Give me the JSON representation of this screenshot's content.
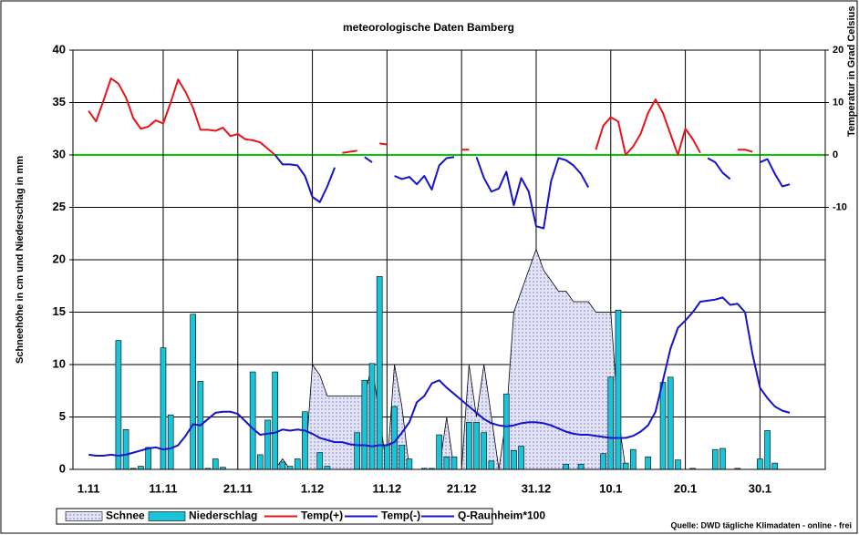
{
  "chart_data": {
    "type": "combo",
    "title": "meteorologische Daten  Bamberg",
    "y_label": "Schneehöhe in cm und Niederschlag in mm",
    "y2_label": "Temperatur in Grad Celsius",
    "source": "Quelle: DWD tägliche Klimadaten - online - frei",
    "categories": [
      "1.11",
      null,
      null,
      null,
      null,
      null,
      null,
      null,
      null,
      null,
      "11.11",
      null,
      null,
      null,
      null,
      null,
      null,
      null,
      null,
      null,
      "21.11",
      null,
      null,
      null,
      null,
      null,
      null,
      null,
      null,
      null,
      "1.12",
      null,
      null,
      null,
      null,
      null,
      null,
      null,
      null,
      null,
      "11.12",
      null,
      null,
      null,
      null,
      null,
      null,
      null,
      null,
      null,
      "21.12",
      null,
      null,
      null,
      null,
      null,
      null,
      null,
      null,
      null,
      "31.12",
      null,
      null,
      null,
      null,
      null,
      null,
      null,
      null,
      null,
      "10.1",
      null,
      null,
      null,
      null,
      null,
      null,
      null,
      null,
      null,
      "20.1",
      null,
      null,
      null,
      null,
      null,
      null,
      null,
      null,
      null,
      "30.1",
      null,
      null,
      null,
      null
    ],
    "ylim": [
      0,
      40
    ],
    "yticks": [
      0,
      5,
      10,
      15,
      20,
      25,
      30,
      35,
      40
    ],
    "y2lim": [
      -60,
      20
    ],
    "y2ticks": [
      -10,
      0,
      10,
      20
    ],
    "grid": true,
    "zero_line_color": "#00cc00",
    "legend": "bottom",
    "series": [
      {
        "name": "Schnee",
        "type": "area",
        "color": "#d8d8f4",
        "values": [
          0,
          0,
          0,
          0,
          0,
          0,
          0,
          0,
          0,
          0,
          0,
          0,
          0,
          0,
          0,
          0,
          0,
          0,
          0,
          0,
          0,
          0,
          0,
          0,
          0,
          0,
          1,
          0,
          0,
          0,
          10,
          9,
          7,
          7,
          7,
          7,
          7,
          7,
          10,
          5,
          0,
          10,
          6,
          0,
          0,
          0,
          0,
          0,
          5,
          0,
          0,
          10,
          5,
          10,
          5,
          0,
          5,
          15,
          17,
          19,
          21,
          19,
          18,
          17,
          17,
          16,
          16,
          16,
          15,
          15,
          15,
          5,
          0,
          0,
          0,
          0,
          0,
          0,
          0,
          0,
          0,
          0,
          0,
          0,
          0,
          0,
          0,
          0,
          0,
          0,
          0,
          0,
          0,
          0,
          0
        ]
      },
      {
        "name": "Niederschlag",
        "type": "bar",
        "color": "#19c3d8",
        "values": [
          0,
          0,
          0,
          0,
          12.3,
          3.8,
          0.1,
          0.3,
          2.1,
          0,
          11.6,
          5.2,
          0,
          0,
          14.8,
          8.4,
          0.1,
          1,
          0.2,
          0,
          0,
          0,
          9.3,
          1.4,
          4.7,
          9.3,
          0.7,
          0.3,
          1,
          5.5,
          0,
          1.6,
          0.3,
          0,
          0,
          0,
          3.5,
          8.5,
          10.1,
          18.4,
          2.3,
          6,
          2.3,
          1,
          0,
          0.1,
          0.1,
          3.3,
          1.2,
          1.2,
          0,
          4.5,
          4.5,
          3.5,
          0.8,
          0,
          7.2,
          1.8,
          2.2,
          0,
          0,
          0,
          0,
          0,
          0.5,
          0,
          0.5,
          0,
          0,
          1.5,
          8.8,
          15.2,
          0.6,
          1.9,
          0,
          1.2,
          0,
          8.3,
          8.8,
          0.9,
          0,
          0.1,
          0,
          0,
          1.9,
          2,
          0,
          0.1,
          0,
          0,
          1,
          3.7,
          0.6,
          0,
          0
        ]
      },
      {
        "name": "Temp(+)",
        "type": "line",
        "axis": "y2",
        "color": "#e8141c",
        "values": [
          8.4,
          6.4,
          10.4,
          14.6,
          13.6,
          11,
          7,
          5,
          5.4,
          6.6,
          6,
          10,
          14.4,
          12,
          9,
          4.8,
          4.8,
          4.6,
          5.2,
          3.6,
          4,
          3,
          2.8,
          2.4,
          1.2,
          0,
          null,
          null,
          null,
          null,
          null,
          null,
          null,
          null,
          0.4,
          0.6,
          0.8,
          null,
          null,
          2.2,
          2,
          null,
          null,
          null,
          null,
          null,
          null,
          null,
          null,
          null,
          1,
          1,
          null,
          null,
          null,
          null,
          null,
          null,
          null,
          null,
          null,
          null,
          null,
          null,
          null,
          null,
          null,
          null,
          1,
          5.6,
          7.2,
          6.4,
          0,
          1.6,
          4,
          8,
          10.6,
          8,
          4,
          0,
          5,
          3,
          0.4,
          null,
          null,
          null,
          null,
          1,
          1,
          0.6,
          null,
          null,
          null,
          null,
          null
        ]
      },
      {
        "name": "Temp(-)",
        "type": "line",
        "axis": "y2",
        "color": "#1414c8",
        "values": [
          null,
          null,
          null,
          null,
          null,
          null,
          null,
          null,
          null,
          null,
          null,
          null,
          null,
          null,
          null,
          null,
          null,
          null,
          null,
          null,
          null,
          null,
          null,
          null,
          null,
          0,
          -1.8,
          -1.8,
          -2,
          -4,
          -8,
          -9,
          -6,
          -2.4,
          null,
          null,
          null,
          -0.4,
          -1.4,
          null,
          null,
          -4,
          -4.6,
          -4.2,
          -5.6,
          -4,
          -6.6,
          -2,
          -0.6,
          -0.4,
          null,
          null,
          -0.4,
          -4.4,
          -7,
          -6.4,
          -3.2,
          -9.6,
          -4.4,
          -7,
          -13.6,
          -14,
          -5,
          -0.6,
          -1,
          -2,
          -3.6,
          -6.2,
          null,
          null,
          null,
          null,
          0,
          null,
          null,
          null,
          null,
          null,
          null,
          0,
          null,
          null,
          null,
          -0.6,
          -1.4,
          -3.4,
          -4.6,
          null,
          null,
          null,
          -1.4,
          -0.8,
          -3.6,
          -6,
          -5.6
        ]
      },
      {
        "name": "Q-Raunheim*100",
        "type": "line",
        "color": "#1414c8",
        "values": [
          1.4,
          1.3,
          1.3,
          1.4,
          1.3,
          1.4,
          1.6,
          1.8,
          2.0,
          2.1,
          1.9,
          2.0,
          2.3,
          3.2,
          4.3,
          4.2,
          4.8,
          5.4,
          5.5,
          5.5,
          5.3,
          4.6,
          3.9,
          3.3,
          3.4,
          3.5,
          3.8,
          3.7,
          3.8,
          3.7,
          3.4,
          3.0,
          2.8,
          2.6,
          2.6,
          2.4,
          2.3,
          2.3,
          2.2,
          2.3,
          2.3,
          2.6,
          3.5,
          4.5,
          6.4,
          7.0,
          8.2,
          8.5,
          7.8,
          7.2,
          6.6,
          6.0,
          5.4,
          4.8,
          4.4,
          4.2,
          4.1,
          4.2,
          4.4,
          4.5,
          4.5,
          4.4,
          4.2,
          3.9,
          3.6,
          3.4,
          3.3,
          3.3,
          3.2,
          3.1,
          3.0,
          3.0,
          3.0,
          3.2,
          3.6,
          4.2,
          5.5,
          8.5,
          11.5,
          13.5,
          14.2,
          15.0,
          16.0,
          16.1,
          16.2,
          16.4,
          15.7,
          15.8,
          15.0,
          11.0,
          7.8,
          6.8,
          6.0,
          5.6,
          5.4
        ]
      }
    ]
  }
}
